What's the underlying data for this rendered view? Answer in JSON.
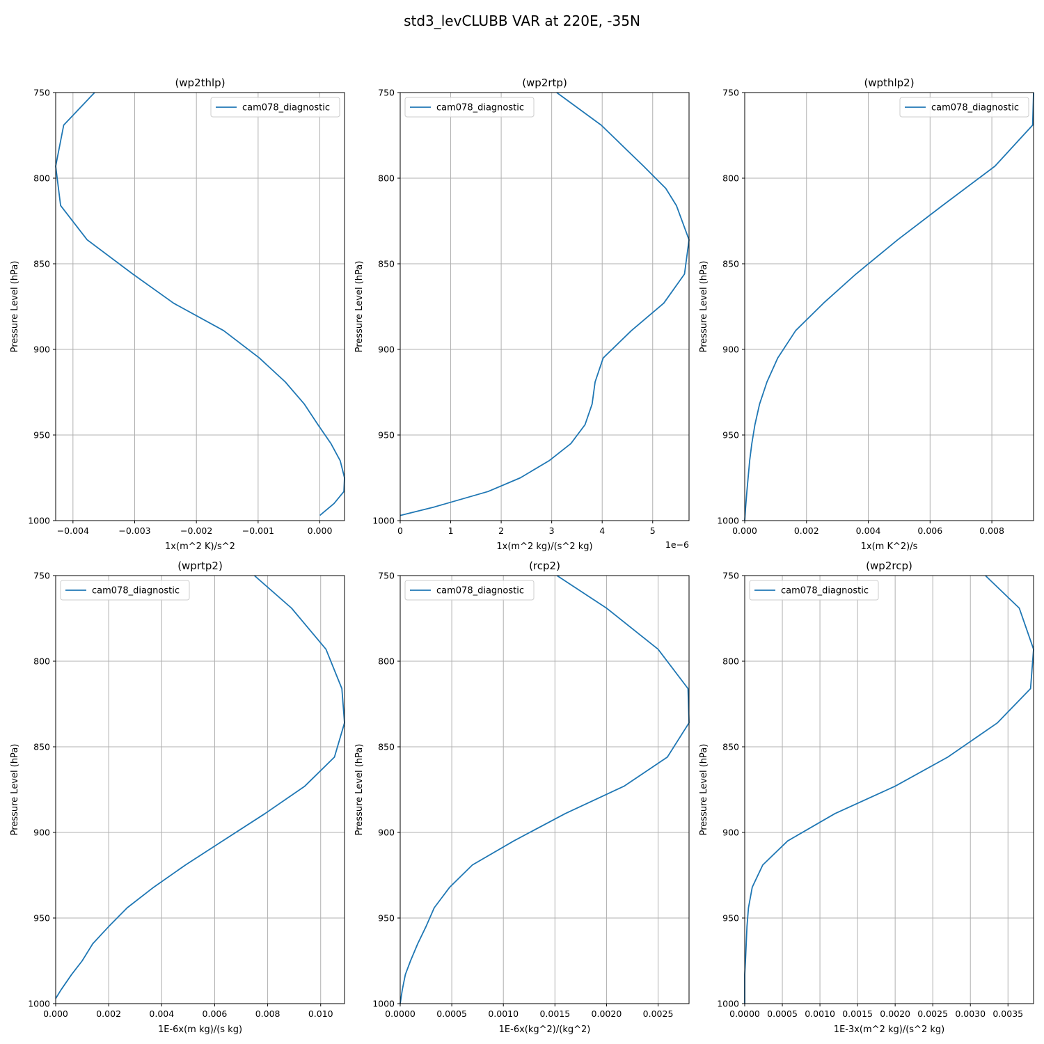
{
  "figure": {
    "title": "std3_levCLUBB VAR at 220E, -35N",
    "background": "#ffffff",
    "line_color": "#1f77b4",
    "grid_color": "#b0b0b0"
  },
  "chart_data": [
    {
      "type": "line",
      "title": "(wp2thlp)",
      "xlabel": "1x(m^2 K)/s^2",
      "ylabel": "Pressure Level (hPa)",
      "xlim": [
        -0.00428,
        0.0004
      ],
      "ylim": [
        1000,
        750
      ],
      "x_ticks": [
        -0.004,
        -0.003,
        -0.002,
        -0.001,
        0.0
      ],
      "x_tick_labels": [
        "−0.004",
        "−0.003",
        "−0.002",
        "−0.001",
        "0.000"
      ],
      "x_offset_label": "",
      "y_ticks": [
        750,
        800,
        850,
        900,
        950,
        1000
      ],
      "y_tick_labels": [
        "750",
        "800",
        "850",
        "900",
        "950",
        "1000"
      ],
      "grid": true,
      "legend_position": "upper right",
      "series": [
        {
          "name": "cam078_diagnostic",
          "x": [
            -0.00365,
            -0.00415,
            -0.00428,
            -0.0042,
            -0.00377,
            -0.00303,
            -0.00237,
            -0.00156,
            -0.00098,
            -0.00056,
            -0.00025,
            -3e-05,
            0.00018,
            0.00033,
            0.0004,
            0.00039,
            0.00023,
            0.0
          ],
          "y": [
            750,
            769,
            793,
            816,
            836,
            856,
            873,
            889,
            905,
            919,
            932,
            944,
            955,
            965,
            975,
            983,
            990,
            997
          ]
        }
      ]
    },
    {
      "type": "line",
      "title": "(wp2rtp)",
      "xlabel": "1x(m^2 kg)/(s^2 kg)",
      "ylabel": "Pressure Level (hPa)",
      "xlim": [
        0,
        5.72
      ],
      "ylim": [
        1000,
        750
      ],
      "x_ticks": [
        0,
        1,
        2,
        3,
        4,
        5
      ],
      "x_tick_labels": [
        "0",
        "1",
        "2",
        "3",
        "4",
        "5"
      ],
      "x_offset_label": "1e−6",
      "y_ticks": [
        750,
        800,
        850,
        900,
        950,
        1000
      ],
      "y_tick_labels": [
        "750",
        "800",
        "850",
        "900",
        "950",
        "1000"
      ],
      "grid": true,
      "legend_position": "upper left",
      "series": [
        {
          "name": "cam078_diagnostic",
          "x": [
            3.1,
            3.98,
            4.82,
            5.26,
            5.47,
            5.72,
            5.63,
            5.22,
            4.58,
            4.02,
            3.86,
            3.8,
            3.66,
            3.38,
            2.95,
            2.38,
            1.74,
            0.68,
            0.0
          ],
          "y": [
            750,
            769,
            793,
            806,
            816,
            836,
            856,
            873,
            889,
            905,
            919,
            932,
            944,
            955,
            965,
            975,
            983,
            992,
            997
          ]
        }
      ]
    },
    {
      "type": "line",
      "title": "(wpthlp2)",
      "xlabel": "1x(m K^2)/s",
      "ylabel": "Pressure Level (hPa)",
      "xlim": [
        0,
        0.00935
      ],
      "ylim": [
        1000,
        750
      ],
      "x_ticks": [
        0.0,
        0.002,
        0.004,
        0.006,
        0.008
      ],
      "x_tick_labels": [
        "0.000",
        "0.002",
        "0.004",
        "0.006",
        "0.008"
      ],
      "x_offset_label": "",
      "y_ticks": [
        750,
        800,
        850,
        900,
        950,
        1000
      ],
      "y_tick_labels": [
        "750",
        "800",
        "850",
        "900",
        "950",
        "1000"
      ],
      "grid": true,
      "legend_position": "upper right",
      "series": [
        {
          "name": "cam078_diagnostic",
          "x": [
            0.00935,
            0.00932,
            0.0081,
            0.0064,
            0.00495,
            0.0036,
            0.00255,
            0.00165,
            0.00107,
            0.00072,
            0.00048,
            0.00033,
            0.00023,
            0.00016,
            0.00011,
            7e-05,
            3e-05,
            0.0
          ],
          "y": [
            750,
            769,
            793,
            816,
            836,
            856,
            873,
            889,
            905,
            919,
            932,
            944,
            955,
            965,
            975,
            983,
            992,
            1000
          ]
        }
      ]
    },
    {
      "type": "line",
      "title": "(wprtp2)",
      "xlabel": "1E-6x(m kg)/(s kg)",
      "ylabel": "Pressure Level (hPa)",
      "xlim": [
        0,
        0.0109
      ],
      "ylim": [
        1000,
        750
      ],
      "x_ticks": [
        0.0,
        0.002,
        0.004,
        0.006,
        0.008,
        0.01
      ],
      "x_tick_labels": [
        "0.000",
        "0.002",
        "0.004",
        "0.006",
        "0.008",
        "0.010"
      ],
      "x_offset_label": "",
      "y_ticks": [
        750,
        800,
        850,
        900,
        950,
        1000
      ],
      "y_tick_labels": [
        "750",
        "800",
        "850",
        "900",
        "950",
        "1000"
      ],
      "grid": true,
      "legend_position": "upper left",
      "series": [
        {
          "name": "cam078_diagnostic",
          "x": [
            0.0075,
            0.0089,
            0.0102,
            0.0108,
            0.0109,
            0.01052,
            0.0094,
            0.0079,
            0.0063,
            0.0049,
            0.0037,
            0.0027,
            0.002,
            0.0014,
            0.001,
            0.0006,
            0.0002,
            0.0
          ],
          "y": [
            750,
            769,
            793,
            816,
            836,
            856,
            873,
            889,
            905,
            919,
            932,
            944,
            955,
            965,
            975,
            983,
            992,
            997
          ]
        }
      ]
    },
    {
      "type": "line",
      "title": "(rcp2)",
      "xlabel": "1E-6x(kg^2)/(kg^2)",
      "ylabel": "Pressure Level (hPa)",
      "xlim": [
        0,
        0.0028
      ],
      "ylim": [
        1000,
        750
      ],
      "x_ticks": [
        0.0,
        0.0005,
        0.001,
        0.0015,
        0.002,
        0.0025
      ],
      "x_tick_labels": [
        "0.0000",
        "0.0005",
        "0.0010",
        "0.0015",
        "0.0020",
        "0.0025"
      ],
      "x_offset_label": "",
      "y_ticks": [
        750,
        800,
        850,
        900,
        950,
        1000
      ],
      "y_tick_labels": [
        "750",
        "800",
        "850",
        "900",
        "950",
        "1000"
      ],
      "grid": true,
      "legend_position": "upper left",
      "series": [
        {
          "name": "cam078_diagnostic",
          "x": [
            0.00152,
            0.002,
            0.0025,
            0.00279,
            0.0028,
            0.00259,
            0.00217,
            0.0016,
            0.0011,
            0.0007,
            0.00048,
            0.00033,
            0.00025,
            0.00017,
            0.0001,
            5e-05,
            2e-05,
            0.0
          ],
          "y": [
            750,
            769,
            793,
            816,
            836,
            856,
            873,
            889,
            905,
            919,
            932,
            944,
            955,
            965,
            975,
            983,
            992,
            1000
          ]
        }
      ]
    },
    {
      "type": "line",
      "title": "(wp2rcp)",
      "xlabel": "1E-3x(m^2 kg)/(s^2 kg)",
      "ylabel": "Pressure Level (hPa)",
      "xlim": [
        0,
        0.00384
      ],
      "ylim": [
        1000,
        750
      ],
      "x_ticks": [
        0.0,
        0.0005,
        0.001,
        0.0015,
        0.002,
        0.0025,
        0.003,
        0.0035
      ],
      "x_tick_labels": [
        "0.0000",
        "0.0005",
        "0.0010",
        "0.0015",
        "0.0020",
        "0.0025",
        "0.0030",
        "0.0035"
      ],
      "x_offset_label": "",
      "y_ticks": [
        750,
        800,
        850,
        900,
        950,
        1000
      ],
      "y_tick_labels": [
        "750",
        "800",
        "850",
        "900",
        "950",
        "1000"
      ],
      "grid": true,
      "legend_position": "upper left",
      "series": [
        {
          "name": "cam078_diagnostic",
          "x": [
            0.0032,
            0.00365,
            0.00384,
            0.0038,
            0.00336,
            0.0027,
            0.002,
            0.0012,
            0.00057,
            0.00024,
            0.0001,
            5e-05,
            3e-05,
            2e-05,
            1e-05,
            0.0,
            0.0
          ],
          "y": [
            750,
            769,
            793,
            816,
            836,
            856,
            873,
            889,
            905,
            919,
            932,
            944,
            955,
            965,
            975,
            983,
            1000
          ]
        }
      ]
    }
  ]
}
